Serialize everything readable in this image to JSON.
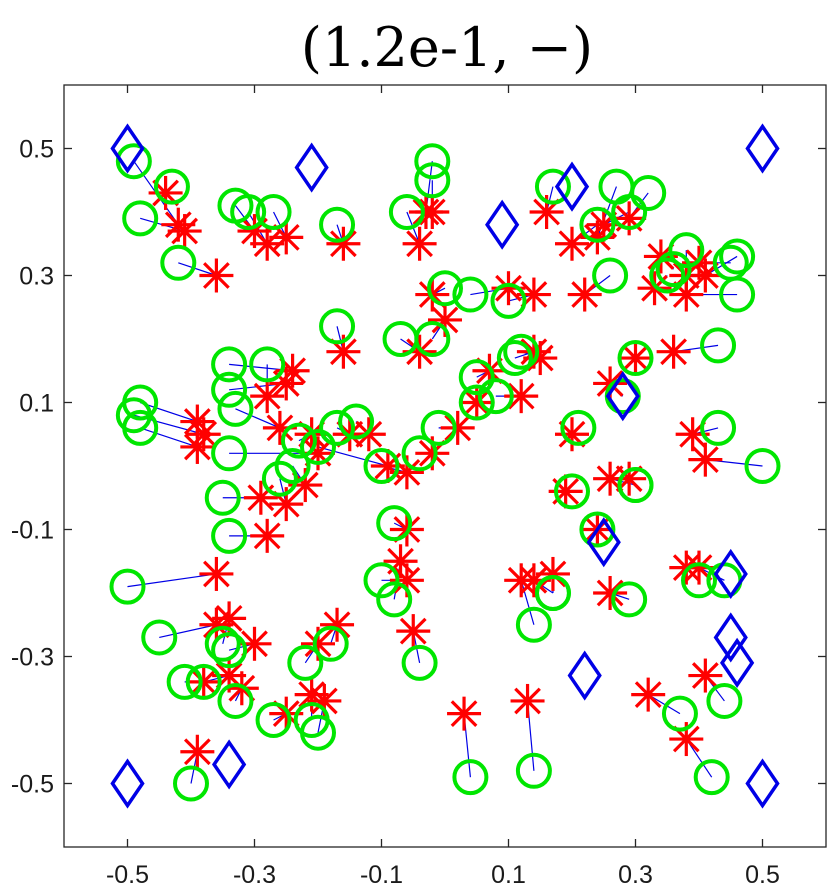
{
  "chart_data": {
    "type": "scatter",
    "title": "(1.2e-1, −)",
    "xlabel": "",
    "ylabel": "",
    "xlim": [
      -0.6,
      0.6
    ],
    "ylim": [
      -0.6,
      0.6
    ],
    "xticks": [
      -0.5,
      -0.3,
      -0.1,
      0.1,
      0.3,
      0.5
    ],
    "yticks": [
      -0.5,
      -0.3,
      -0.1,
      0.1,
      0.3,
      0.5
    ],
    "xtick_labels": [
      "-0.5",
      "-0.3",
      "-0.1",
      "0.1",
      "0.3",
      "0.5"
    ],
    "ytick_labels": [
      "-0.5",
      "-0.3",
      "-0.1",
      "0.1",
      "0.3",
      "0.5"
    ],
    "grid": false,
    "legend": "none",
    "colors": {
      "diamonds": "#0000e6",
      "stars": "#ff0000",
      "circles": "#00e600",
      "lines": "#0000e6"
    },
    "diamonds": [
      [
        -0.5,
        0.5
      ],
      [
        -0.21,
        0.47
      ],
      [
        0.09,
        0.38
      ],
      [
        0.2,
        0.44
      ],
      [
        0.5,
        0.5
      ],
      [
        0.28,
        0.11
      ],
      [
        0.25,
        -0.12
      ],
      [
        0.45,
        -0.17
      ],
      [
        0.45,
        -0.27
      ],
      [
        0.46,
        -0.31
      ],
      [
        0.22,
        -0.33
      ],
      [
        -0.5,
        -0.5
      ],
      [
        -0.34,
        -0.47
      ],
      [
        0.5,
        -0.5
      ]
    ],
    "pairs": [
      [
        -0.44,
        0.43,
        -0.43,
        0.44
      ],
      [
        -0.42,
        0.38,
        -0.49,
        0.48
      ],
      [
        -0.41,
        0.37,
        -0.48,
        0.39
      ],
      [
        -0.36,
        0.3,
        -0.42,
        0.32
      ],
      [
        -0.3,
        0.37,
        -0.33,
        0.41
      ],
      [
        -0.28,
        0.35,
        -0.31,
        0.4
      ],
      [
        -0.25,
        0.36,
        -0.27,
        0.4
      ],
      [
        -0.16,
        0.35,
        -0.17,
        0.38
      ],
      [
        -0.04,
        0.35,
        -0.06,
        0.4
      ],
      [
        -0.03,
        0.4,
        -0.02,
        0.48
      ],
      [
        -0.02,
        0.4,
        -0.02,
        0.45
      ],
      [
        0.16,
        0.4,
        0.17,
        0.44
      ],
      [
        0.2,
        0.35,
        0.24,
        0.38
      ],
      [
        0.22,
        0.27,
        0.26,
        0.3
      ],
      [
        0.24,
        0.36,
        0.27,
        0.44
      ],
      [
        0.25,
        0.38,
        0.29,
        0.4
      ],
      [
        0.29,
        0.39,
        0.32,
        0.43
      ],
      [
        0.34,
        0.33,
        0.36,
        0.31
      ],
      [
        0.33,
        0.28,
        0.35,
        0.3
      ],
      [
        0.38,
        0.3,
        0.38,
        0.34
      ],
      [
        0.4,
        0.32,
        0.45,
        0.32
      ],
      [
        0.41,
        0.3,
        0.46,
        0.33
      ],
      [
        0.38,
        0.27,
        0.46,
        0.27
      ],
      [
        -0.24,
        0.15,
        -0.34,
        0.16
      ],
      [
        -0.25,
        0.13,
        -0.34,
        0.12
      ],
      [
        -0.28,
        0.11,
        -0.28,
        0.16
      ],
      [
        -0.16,
        0.18,
        -0.17,
        0.22
      ],
      [
        -0.04,
        0.18,
        -0.07,
        0.2
      ],
      [
        -0.02,
        0.27,
        0.0,
        0.28
      ],
      [
        -0.0,
        0.23,
        -0.02,
        0.2
      ],
      [
        0.1,
        0.28,
        0.04,
        0.27
      ],
      [
        0.14,
        0.27,
        0.1,
        0.26
      ],
      [
        0.14,
        0.18,
        0.11,
        0.17
      ],
      [
        0.15,
        0.17,
        0.12,
        0.18
      ],
      [
        0.3,
        0.17,
        0.3,
        0.17
      ],
      [
        0.36,
        0.18,
        0.43,
        0.19
      ],
      [
        0.26,
        0.13,
        0.28,
        0.11
      ],
      [
        -0.39,
        0.07,
        -0.48,
        0.1
      ],
      [
        -0.38,
        0.05,
        -0.49,
        0.08
      ],
      [
        -0.39,
        0.03,
        -0.48,
        0.06
      ],
      [
        -0.26,
        0.06,
        -0.33,
        0.09
      ],
      [
        -0.21,
        0.05,
        -0.23,
        0.04
      ],
      [
        -0.15,
        0.05,
        -0.17,
        0.06
      ],
      [
        -0.12,
        0.05,
        -0.14,
        0.07
      ],
      [
        -0.2,
        0.02,
        -0.34,
        0.02
      ],
      [
        -0.09,
        0.0,
        -0.2,
        0.03
      ],
      [
        -0.06,
        -0.01,
        -0.1,
        0.0
      ],
      [
        -0.02,
        0.02,
        -0.04,
        0.02
      ],
      [
        0.02,
        0.06,
        -0.01,
        0.06
      ],
      [
        0.05,
        0.1,
        0.05,
        0.1
      ],
      [
        0.07,
        0.15,
        0.05,
        0.14
      ],
      [
        0.12,
        0.11,
        0.08,
        0.11
      ],
      [
        0.2,
        0.05,
        0.21,
        0.06
      ],
      [
        0.39,
        0.05,
        0.43,
        0.06
      ],
      [
        0.41,
        0.01,
        0.5,
        0.0
      ],
      [
        0.26,
        -0.02,
        0.3,
        -0.03
      ],
      [
        0.29,
        -0.02,
        0.3,
        -0.03
      ],
      [
        0.19,
        -0.04,
        0.2,
        -0.04
      ],
      [
        0.24,
        -0.1,
        0.24,
        -0.1
      ],
      [
        -0.29,
        -0.05,
        -0.35,
        -0.05
      ],
      [
        -0.28,
        -0.11,
        -0.34,
        -0.11
      ],
      [
        -0.25,
        -0.06,
        -0.26,
        -0.02
      ],
      [
        -0.22,
        -0.03,
        -0.24,
        0.0
      ],
      [
        -0.06,
        -0.1,
        -0.08,
        -0.09
      ],
      [
        -0.07,
        -0.15,
        -0.08,
        -0.21
      ],
      [
        -0.06,
        -0.18,
        -0.1,
        -0.18
      ],
      [
        -0.36,
        -0.17,
        -0.5,
        -0.19
      ],
      [
        -0.36,
        -0.25,
        -0.45,
        -0.27
      ],
      [
        -0.34,
        -0.24,
        -0.35,
        -0.28
      ],
      [
        -0.3,
        -0.28,
        -0.34,
        -0.29
      ],
      [
        -0.17,
        -0.25,
        -0.18,
        -0.28
      ],
      [
        -0.2,
        -0.28,
        -0.22,
        -0.31
      ],
      [
        -0.38,
        -0.34,
        -0.41,
        -0.34
      ],
      [
        -0.34,
        -0.33,
        -0.38,
        -0.34
      ],
      [
        -0.32,
        -0.35,
        -0.33,
        -0.37
      ],
      [
        -0.25,
        -0.39,
        -0.27,
        -0.4
      ],
      [
        -0.21,
        -0.36,
        -0.21,
        -0.4
      ],
      [
        -0.19,
        -0.37,
        -0.2,
        -0.42
      ],
      [
        -0.39,
        -0.45,
        -0.4,
        -0.5
      ],
      [
        -0.05,
        -0.26,
        -0.04,
        -0.31
      ],
      [
        0.03,
        -0.39,
        0.04,
        -0.49
      ],
      [
        0.13,
        -0.37,
        0.14,
        -0.48
      ],
      [
        0.12,
        -0.18,
        0.14,
        -0.25
      ],
      [
        0.14,
        -0.18,
        0.17,
        -0.2
      ],
      [
        0.17,
        -0.17,
        0.17,
        -0.2
      ],
      [
        0.26,
        -0.2,
        0.29,
        -0.21
      ],
      [
        0.38,
        -0.16,
        0.4,
        -0.18
      ],
      [
        0.4,
        -0.16,
        0.44,
        -0.18
      ],
      [
        0.32,
        -0.36,
        0.37,
        -0.39
      ],
      [
        0.38,
        -0.43,
        0.42,
        -0.49
      ],
      [
        0.41,
        -0.33,
        0.44,
        -0.37
      ]
    ]
  }
}
